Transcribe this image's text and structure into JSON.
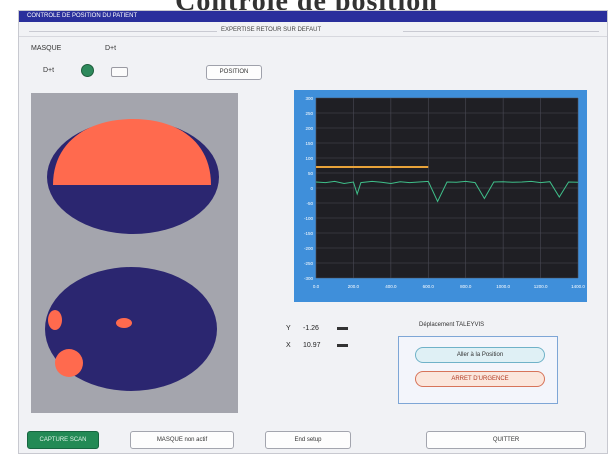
{
  "app": {
    "title": "Contrôle de position",
    "window_title": "CONTROLE DE POSITION DU PATIENT",
    "status_text": "EXPERTISE RETOUR SUR DEFAUT",
    "accent": "#2a2f9c"
  },
  "mask": {
    "label": "MASQUE",
    "value": "D+t",
    "indicator_label": "D+t",
    "position_button": "POSITION"
  },
  "readouts": [
    {
      "axis": "Y",
      "value": "-1.26"
    },
    {
      "axis": "X",
      "value": "10.97"
    }
  ],
  "displacement": {
    "title": "Déplacement TALEYVIS",
    "allow_button": "Aller à la Position",
    "stop_button": "ARRET D'URGENCE"
  },
  "bottom": {
    "active_button": "CAPTURE SCAN",
    "mask_button": "MASQUE non actif",
    "setup_button": "End setup",
    "quit_button": "QUITTER"
  },
  "chart_data": {
    "type": "line",
    "x_ticks": [
      "0.0",
      "200.0",
      "400.0",
      "600.0",
      "800.0",
      "1000.0",
      "1200.0",
      "1400.0"
    ],
    "y_ticks": [
      "-300",
      "-250",
      "-200",
      "-150",
      "-100",
      "-50",
      "0",
      "50",
      "100",
      "150",
      "200",
      "250",
      "300"
    ],
    "xlim": [
      0,
      1400
    ],
    "ylim": [
      -300,
      300
    ],
    "grid": true,
    "background": "#1f1f24",
    "series": [
      {
        "color": "#e8a33a",
        "x": [
          0,
          600
        ],
        "y": [
          70,
          70
        ]
      },
      {
        "color": "#3fbf8a",
        "x": [
          0,
          50,
          100,
          150,
          200,
          220,
          240,
          300,
          350,
          400,
          450,
          500,
          550,
          600,
          650,
          700,
          750,
          800,
          850,
          900,
          950,
          1000,
          1050,
          1100,
          1150,
          1200,
          1250,
          1300,
          1350,
          1400
        ],
        "y": [
          20,
          18,
          22,
          15,
          20,
          -20,
          18,
          22,
          19,
          15,
          21,
          18,
          20,
          22,
          -45,
          20,
          19,
          22,
          18,
          -35,
          20,
          21,
          19,
          20,
          22,
          18,
          21,
          -30,
          20,
          19
        ]
      }
    ]
  }
}
